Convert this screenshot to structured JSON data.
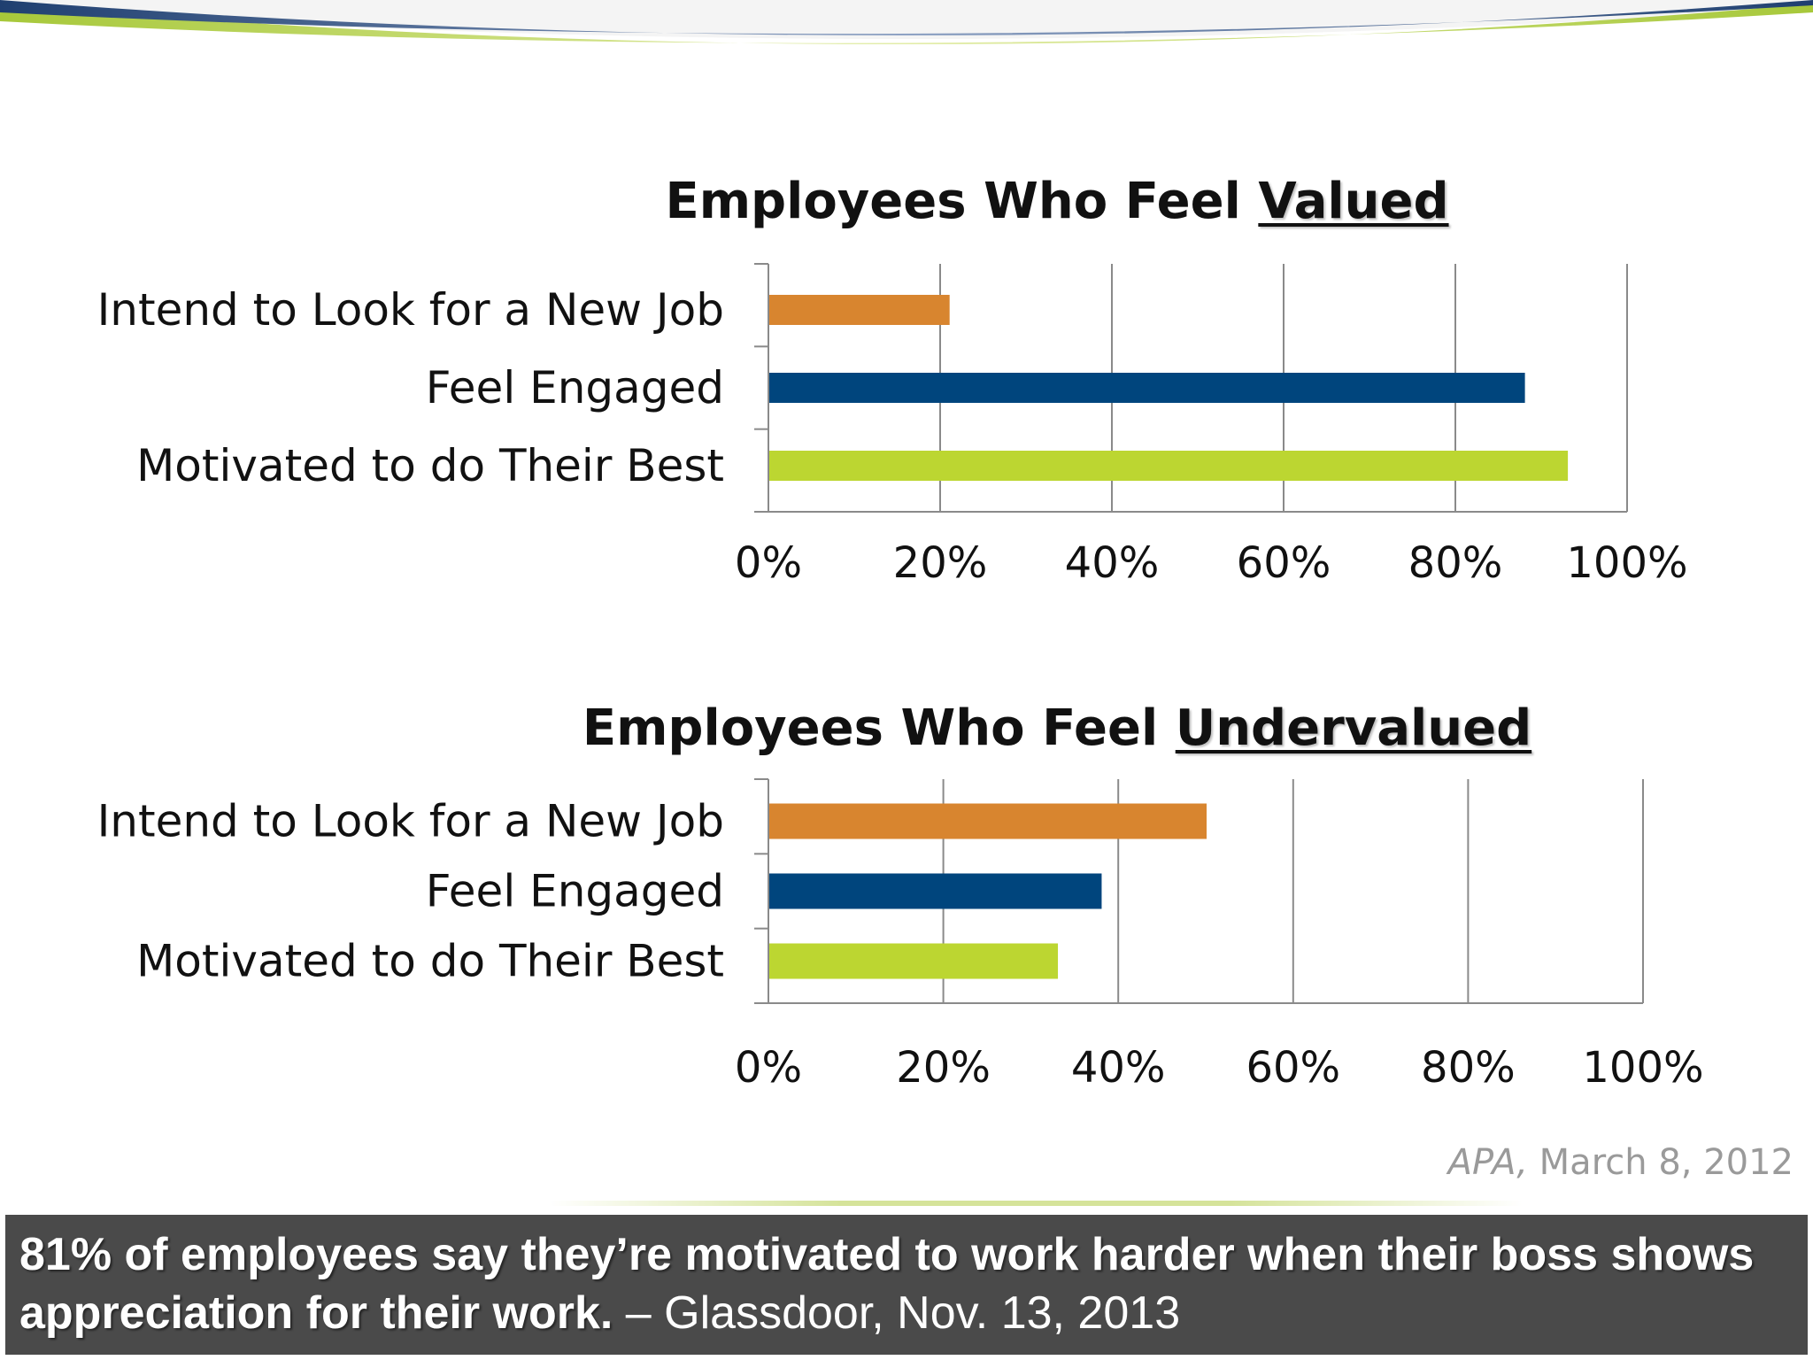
{
  "chart_data": [
    {
      "type": "bar",
      "orientation": "horizontal",
      "title_prefix": "Employees Who Feel ",
      "title_emphasis": "Valued",
      "categories": [
        "Intend to Look for a New Job",
        "Feel Engaged",
        "Motivated to do Their Best"
      ],
      "values": [
        21,
        88,
        93
      ],
      "bar_colors": [
        "#d8852f",
        "#00457d",
        "#bcd631"
      ],
      "xlim": [
        0,
        100
      ],
      "x_ticks": [
        "0%",
        "20%",
        "40%",
        "60%",
        "80%",
        "100%"
      ],
      "grid": true
    },
    {
      "type": "bar",
      "orientation": "horizontal",
      "title_prefix": "Employees Who Feel ",
      "title_emphasis": "Undervalued",
      "categories": [
        "Intend to Look for a New Job",
        "Feel Engaged",
        "Motivated to do Their Best"
      ],
      "values": [
        50,
        38,
        33
      ],
      "bar_colors": [
        "#d8852f",
        "#00457d",
        "#bcd631"
      ],
      "xlim": [
        0,
        100
      ],
      "x_ticks": [
        "0%",
        "20%",
        "40%",
        "60%",
        "80%",
        "100%"
      ],
      "grid": true
    }
  ],
  "source": {
    "publisher": "APA,",
    "date": "March 8, 2012"
  },
  "quote": {
    "text": "81% of employees say they’re motivated to work harder when their boss shows appreciation for their work.",
    "attribution": "– Glassdoor, Nov. 13, 2013"
  },
  "colors": {
    "swoosh_blue": "#2e4f82",
    "swoosh_green": "#b6d33a",
    "quote_bg": "#4a4a4a"
  }
}
